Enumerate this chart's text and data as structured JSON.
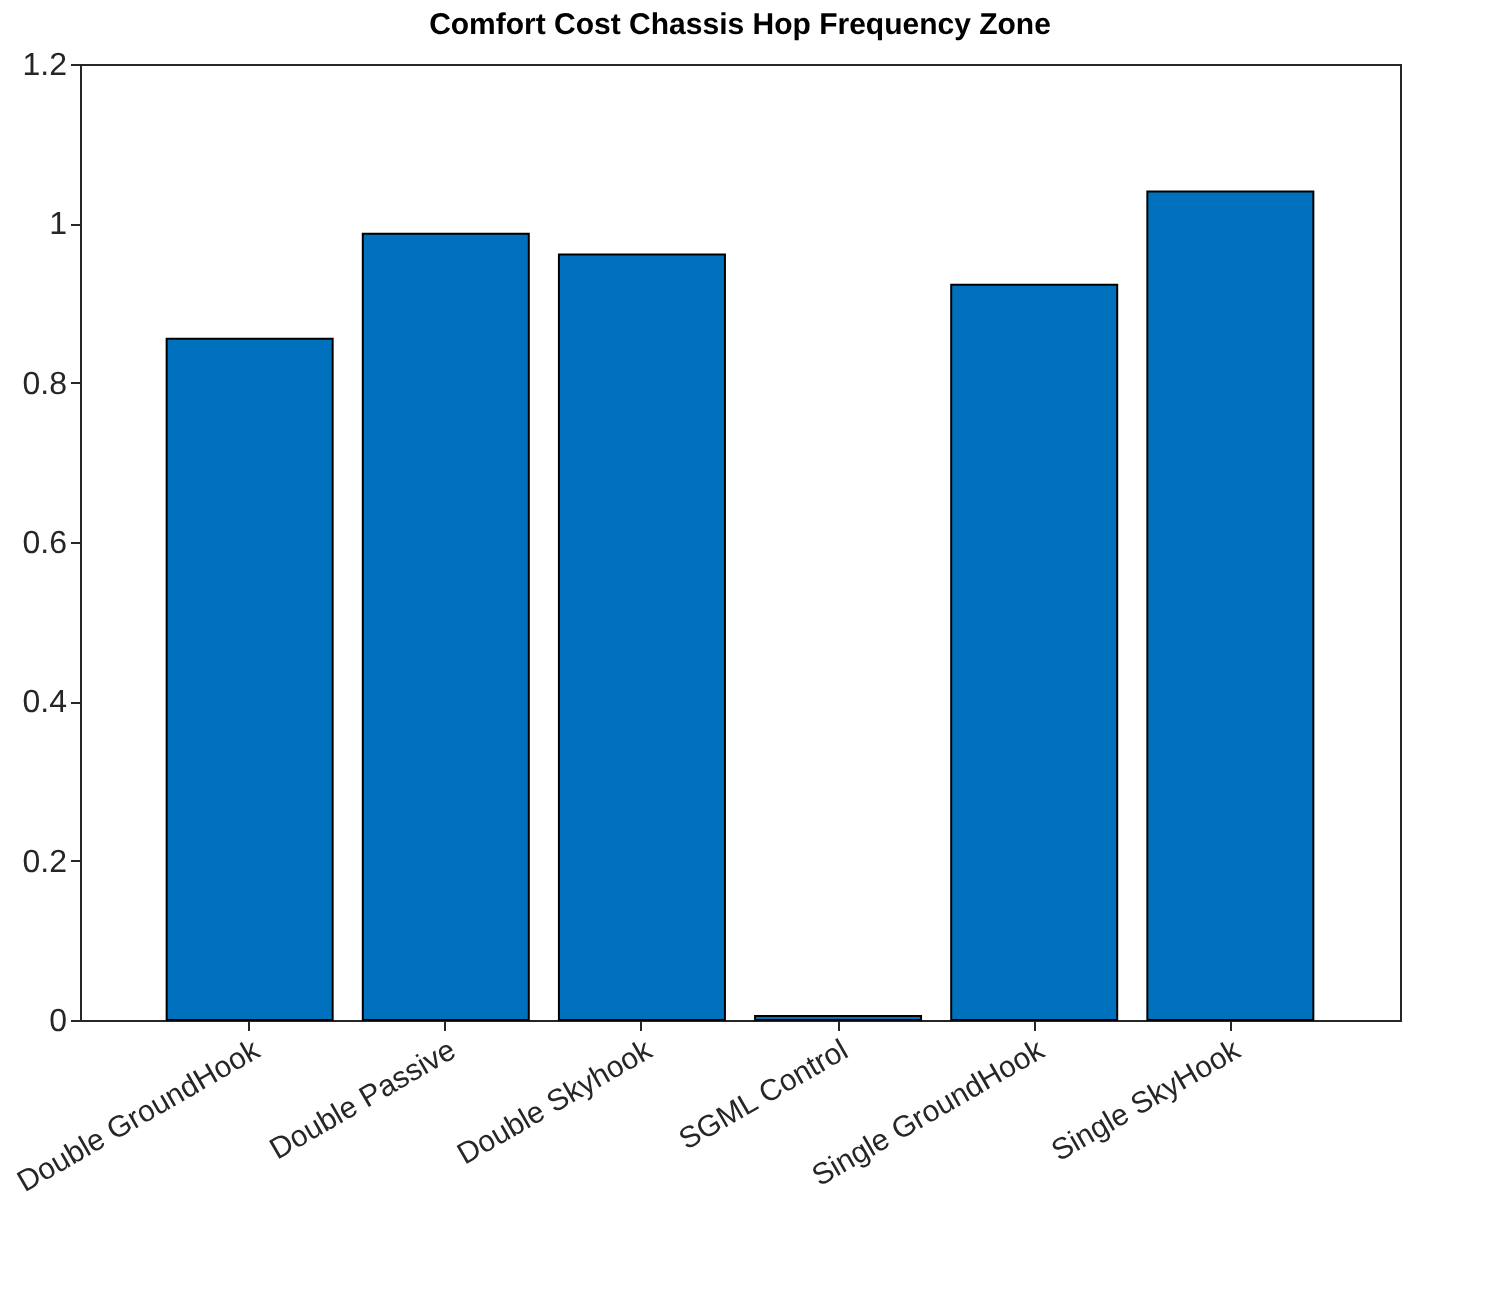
{
  "chart_data": {
    "type": "bar",
    "title": "Comfort Cost Chassis Hop Frequency Zone",
    "categories": [
      "Double GroundHook",
      "Double Passive",
      "Double Skyhook",
      "SGML Control",
      "Single GroundHook",
      "Single SkyHook"
    ],
    "values": [
      0.855,
      0.987,
      0.961,
      0.005,
      0.923,
      1.04
    ],
    "color": "#0072bd",
    "ylim": [
      0,
      1.2
    ],
    "yticks": [
      0,
      0.2,
      0.4,
      0.6,
      0.8,
      1,
      1.2
    ],
    "grid": false
  }
}
